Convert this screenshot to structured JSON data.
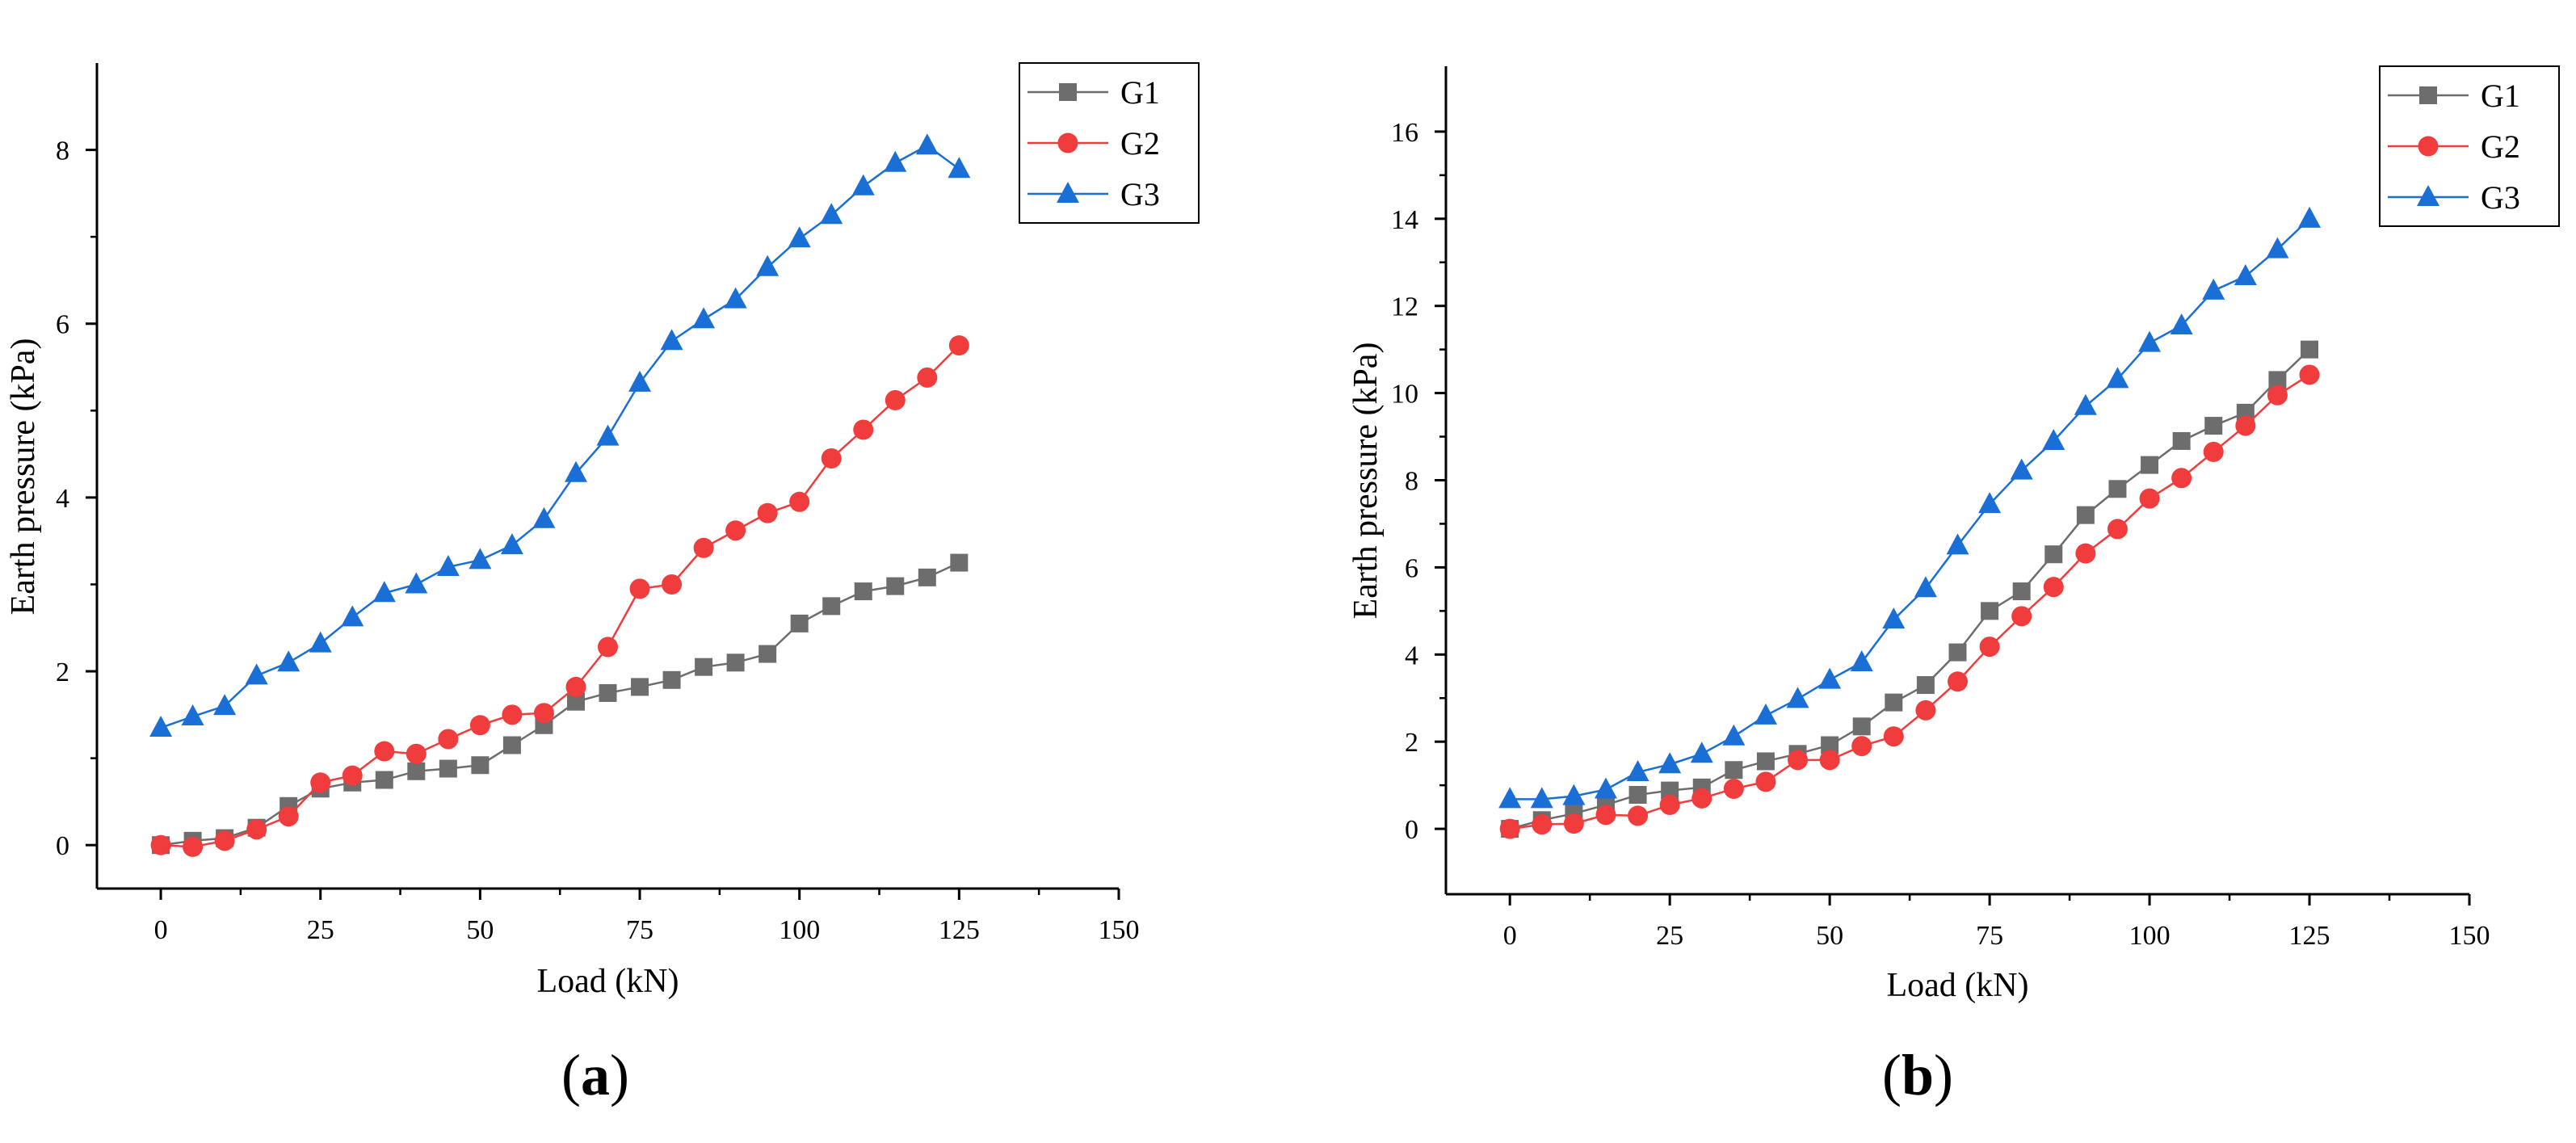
{
  "chart_data": [
    {
      "type": "line",
      "panel": "(a)",
      "panel_letter": "a",
      "title": "",
      "xlabel": "Load (kN)",
      "ylabel": "Earth pressure (kPa)",
      "xlim": [
        -10,
        150
      ],
      "ylim": [
        -0.5,
        9
      ],
      "xticks": [
        0,
        25,
        50,
        75,
        100,
        125,
        150
      ],
      "yticks": [
        0,
        2,
        4,
        6,
        8
      ],
      "grid": false,
      "legend_position": "top-right",
      "x": [
        0,
        5,
        10,
        15,
        20,
        25,
        30,
        35,
        40,
        45,
        50,
        55,
        60,
        65,
        70,
        75,
        80,
        85,
        90,
        95,
        100,
        105,
        110,
        115,
        120,
        125
      ],
      "series": [
        {
          "name": "G1",
          "color": "#6d6d6d",
          "marker": "square",
          "values": [
            0.0,
            0.05,
            0.08,
            0.2,
            0.45,
            0.65,
            0.72,
            0.75,
            0.85,
            0.88,
            0.92,
            1.15,
            1.38,
            1.65,
            1.75,
            1.82,
            1.9,
            2.05,
            2.1,
            2.2,
            2.55,
            2.75,
            2.92,
            2.98,
            3.08,
            3.25
          ]
        },
        {
          "name": "G2",
          "color": "#f03c3c",
          "marker": "circle",
          "values": [
            0.0,
            -0.02,
            0.05,
            0.18,
            0.33,
            0.72,
            0.8,
            1.08,
            1.05,
            1.22,
            1.38,
            1.5,
            1.52,
            1.82,
            2.28,
            2.95,
            3.0,
            3.42,
            3.62,
            3.82,
            3.95,
            4.45,
            4.78,
            5.12,
            5.38,
            5.75
          ]
        },
        {
          "name": "G3",
          "color": "#1a6fd6",
          "marker": "triangle",
          "values": [
            1.35,
            1.48,
            1.6,
            1.95,
            2.1,
            2.32,
            2.62,
            2.9,
            3.0,
            3.2,
            3.28,
            3.45,
            3.75,
            4.28,
            4.7,
            5.32,
            5.8,
            6.05,
            6.28,
            6.65,
            6.98,
            7.25,
            7.58,
            7.85,
            8.05,
            7.78
          ]
        }
      ]
    },
    {
      "type": "line",
      "panel": "(b)",
      "panel_letter": "b",
      "title": "",
      "xlabel": "Load (kN)",
      "ylabel": "Earth pressure (kPa)",
      "xlim": [
        -10,
        150
      ],
      "ylim": [
        -1.5,
        17.5
      ],
      "xticks": [
        0,
        25,
        50,
        75,
        100,
        125,
        150
      ],
      "yticks": [
        0,
        2,
        4,
        6,
        8,
        10,
        12,
        14,
        16
      ],
      "grid": false,
      "legend_position": "top-right",
      "x": [
        0,
        5,
        10,
        15,
        20,
        25,
        30,
        35,
        40,
        45,
        50,
        55,
        60,
        65,
        70,
        75,
        80,
        85,
        90,
        95,
        100,
        105,
        110,
        115,
        120,
        125
      ],
      "series": [
        {
          "name": "G1",
          "color": "#6d6d6d",
          "marker": "square",
          "values": [
            0.0,
            0.2,
            0.35,
            0.55,
            0.78,
            0.88,
            0.95,
            1.35,
            1.55,
            1.72,
            1.92,
            2.35,
            2.9,
            3.3,
            4.05,
            5.0,
            5.45,
            6.3,
            7.2,
            7.8,
            8.35,
            8.9,
            9.25,
            9.55,
            10.3,
            11.0
          ]
        },
        {
          "name": "G2",
          "color": "#f03c3c",
          "marker": "circle",
          "values": [
            0.0,
            0.1,
            0.12,
            0.32,
            0.3,
            0.55,
            0.7,
            0.92,
            1.08,
            1.58,
            1.58,
            1.9,
            2.12,
            2.72,
            3.38,
            4.18,
            4.88,
            5.55,
            6.32,
            6.88,
            7.58,
            8.05,
            8.65,
            9.25,
            9.95,
            10.42
          ]
        },
        {
          "name": "G3",
          "color": "#1a6fd6",
          "marker": "triangle",
          "values": [
            0.68,
            0.68,
            0.75,
            0.9,
            1.3,
            1.48,
            1.72,
            2.12,
            2.6,
            2.98,
            3.42,
            3.82,
            4.8,
            5.52,
            6.5,
            7.45,
            8.22,
            8.9,
            9.7,
            10.32,
            11.15,
            11.55,
            12.35,
            12.68,
            13.3,
            14.0
          ]
        }
      ]
    }
  ]
}
